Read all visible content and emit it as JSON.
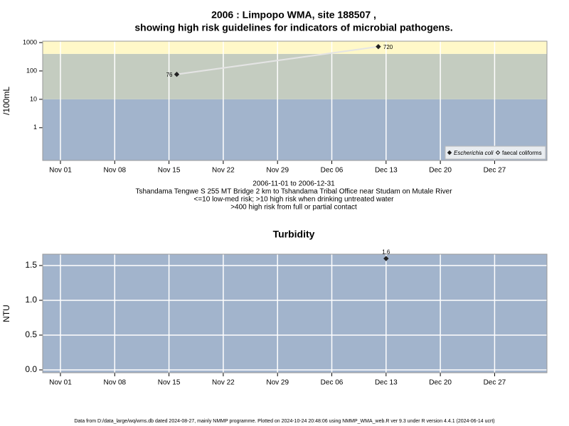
{
  "chart_data": [
    {
      "type": "scatter",
      "title": [
        "2006 : Limpopo WMA, site 188507 ,",
        "showing high risk guidelines for indicators of microbial pathogens."
      ],
      "ylabel": "/100mL",
      "notes": [
        "2006-11-01 to 2006-12-31",
        "Tshandama Tengwe S 255 MT Bridge 2 km to Tshandama Tribal Office near Studam on Mutale River",
        "<=10 low-med risk; >10 high risk when drinking untreated water",
        ">400 high risk from full or partial contact"
      ],
      "log_y": true,
      "ylim": [
        0.07,
        1120
      ],
      "yticks": [
        1,
        10,
        100,
        1000
      ],
      "xlim": [
        "2006-10-29T17:00",
        "2007-01-02T18:00"
      ],
      "xticks": [
        {
          "value": "2006-11-01",
          "label": "Nov 01"
        },
        {
          "value": "2006-11-08",
          "label": "Nov 08"
        },
        {
          "value": "2006-11-15",
          "label": "Nov 15"
        },
        {
          "value": "2006-11-22",
          "label": "Nov 22"
        },
        {
          "value": "2006-11-29",
          "label": "Nov 29"
        },
        {
          "value": "2006-12-06",
          "label": "Dec 06"
        },
        {
          "value": "2006-12-13",
          "label": "Dec 13"
        },
        {
          "value": "2006-12-20",
          "label": "Dec 20"
        },
        {
          "value": "2006-12-27",
          "label": "Dec 27"
        }
      ],
      "grid": "x",
      "band_breaks": [
        10,
        400
      ],
      "band_colors": [
        "#a2b4cc",
        "#c4ccc0",
        "#fff8c8"
      ],
      "x": [
        "2006-11-16",
        "2006-12-12"
      ],
      "series": [
        {
          "name": "Escherichia coli",
          "color": "#222222",
          "marker": "filled",
          "line_color": "#e4e4e4",
          "values": [
            76,
            720
          ]
        },
        {
          "name": "faecal coliforms",
          "color": "#222222",
          "marker": "open",
          "values": [
            null,
            null
          ]
        }
      ],
      "legend": "lower right"
    },
    {
      "type": "scatter",
      "title": [
        "Turbidity"
      ],
      "ylabel": "NTU",
      "ylim": [
        -0.041,
        1.663
      ],
      "yticks": [
        {
          "value": 0,
          "label": "0.0"
        },
        0.5,
        {
          "value": 1,
          "label": "1.0"
        },
        1.5
      ],
      "xlim": [
        "2006-10-29T17:00",
        "2007-01-02T18:00"
      ],
      "xticks": [
        {
          "value": "2006-11-01",
          "label": "Nov 01"
        },
        {
          "value": "2006-11-08",
          "label": "Nov 08"
        },
        {
          "value": "2006-11-15",
          "label": "Nov 15"
        },
        {
          "value": "2006-11-22",
          "label": "Nov 22"
        },
        {
          "value": "2006-11-29",
          "label": "Nov 29"
        },
        {
          "value": "2006-12-06",
          "label": "Dec 06"
        },
        {
          "value": "2006-12-13",
          "label": "Dec 13"
        },
        {
          "value": "2006-12-20",
          "label": "Dec 20"
        },
        {
          "value": "2006-12-27",
          "label": "Dec 27"
        }
      ],
      "grid": "xy",
      "background": "#a2b4cc",
      "x": [
        "2006-12-13"
      ],
      "series": [
        {
          "color": "#222222",
          "marker": "filled",
          "values": [
            1.6
          ]
        }
      ]
    }
  ],
  "footer": "Data from D:/data_large/wq/wms.db dated 2024-08-27, mainly NMMP programme. Plotted on 2024-10-24 20:48:06 using NMMP_WMA_web.R ver 9.3 under R version 4.4.1 (2024-06-14 ucrt)"
}
